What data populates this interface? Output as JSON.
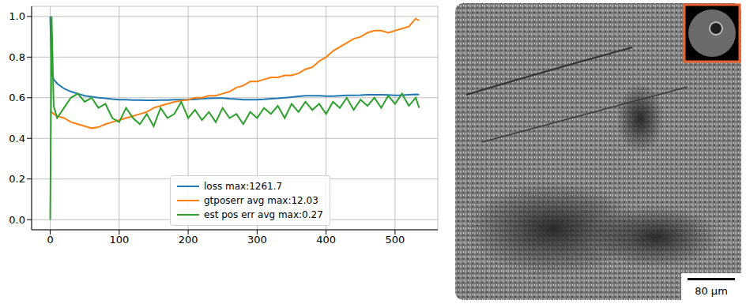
{
  "chart_data": {
    "type": "line",
    "x": [
      0,
      2,
      5,
      10,
      20,
      30,
      40,
      50,
      60,
      70,
      80,
      90,
      100,
      110,
      120,
      130,
      140,
      150,
      160,
      170,
      180,
      190,
      200,
      210,
      220,
      230,
      240,
      250,
      260,
      270,
      280,
      290,
      300,
      310,
      320,
      330,
      340,
      350,
      360,
      370,
      380,
      390,
      400,
      410,
      420,
      430,
      440,
      450,
      460,
      470,
      480,
      490,
      500,
      510,
      520,
      530,
      535
    ],
    "series": [
      {
        "name": "loss max:1261.7",
        "color": "#1f77b4",
        "values": [
          1.0,
          0.72,
          0.69,
          0.67,
          0.645,
          0.63,
          0.62,
          0.61,
          0.605,
          0.6,
          0.597,
          0.593,
          0.59,
          0.59,
          0.588,
          0.588,
          0.587,
          0.587,
          0.588,
          0.588,
          0.59,
          0.59,
          0.59,
          0.592,
          0.595,
          0.597,
          0.598,
          0.598,
          0.595,
          0.593,
          0.59,
          0.59,
          0.59,
          0.592,
          0.595,
          0.597,
          0.6,
          0.603,
          0.607,
          0.61,
          0.61,
          0.61,
          0.608,
          0.608,
          0.61,
          0.612,
          0.612,
          0.613,
          0.615,
          0.615,
          0.615,
          0.614,
          0.612,
          0.613,
          0.615,
          0.617,
          0.616
        ]
      },
      {
        "name": "gtposerr avg max:12.03",
        "color": "#ff7f0e",
        "values": [
          0.53,
          0.53,
          0.52,
          0.51,
          0.5,
          0.48,
          0.47,
          0.46,
          0.45,
          0.455,
          0.47,
          0.48,
          0.49,
          0.5,
          0.51,
          0.52,
          0.53,
          0.55,
          0.56,
          0.57,
          0.58,
          0.585,
          0.59,
          0.6,
          0.6,
          0.61,
          0.61,
          0.62,
          0.63,
          0.65,
          0.66,
          0.68,
          0.68,
          0.69,
          0.7,
          0.7,
          0.71,
          0.71,
          0.72,
          0.74,
          0.75,
          0.78,
          0.8,
          0.83,
          0.85,
          0.87,
          0.89,
          0.9,
          0.92,
          0.93,
          0.93,
          0.92,
          0.93,
          0.94,
          0.95,
          0.99,
          0.98
        ]
      },
      {
        "name": "est pos err avg max:0.27",
        "color": "#2ca02c",
        "values": [
          0.0,
          1.0,
          0.56,
          0.5,
          0.55,
          0.6,
          0.62,
          0.58,
          0.6,
          0.55,
          0.57,
          0.5,
          0.48,
          0.55,
          0.5,
          0.47,
          0.52,
          0.46,
          0.55,
          0.5,
          0.52,
          0.58,
          0.5,
          0.54,
          0.49,
          0.53,
          0.48,
          0.55,
          0.5,
          0.52,
          0.47,
          0.53,
          0.5,
          0.55,
          0.52,
          0.56,
          0.5,
          0.57,
          0.53,
          0.58,
          0.54,
          0.57,
          0.52,
          0.58,
          0.55,
          0.6,
          0.54,
          0.59,
          0.56,
          0.6,
          0.55,
          0.61,
          0.57,
          0.62,
          0.56,
          0.6,
          0.55
        ]
      }
    ],
    "xlim": [
      -27,
      562
    ],
    "xticks": [
      0,
      100,
      200,
      300,
      400,
      500
    ],
    "ylim": [
      -0.05,
      1.05
    ],
    "yticks": [
      {
        "value": 0,
        "label": "0.0"
      },
      {
        "value": 0.2,
        "label": "0.2"
      },
      {
        "value": 0.4,
        "label": "0.4"
      },
      {
        "value": 0.6,
        "label": "0.6"
      },
      {
        "value": 0.8,
        "label": "0.8"
      },
      {
        "value": 1.0,
        "label": "1.0"
      }
    ],
    "grid": true,
    "legend": "lower center"
  },
  "image": {
    "scale_bar_label": "80 µm"
  }
}
